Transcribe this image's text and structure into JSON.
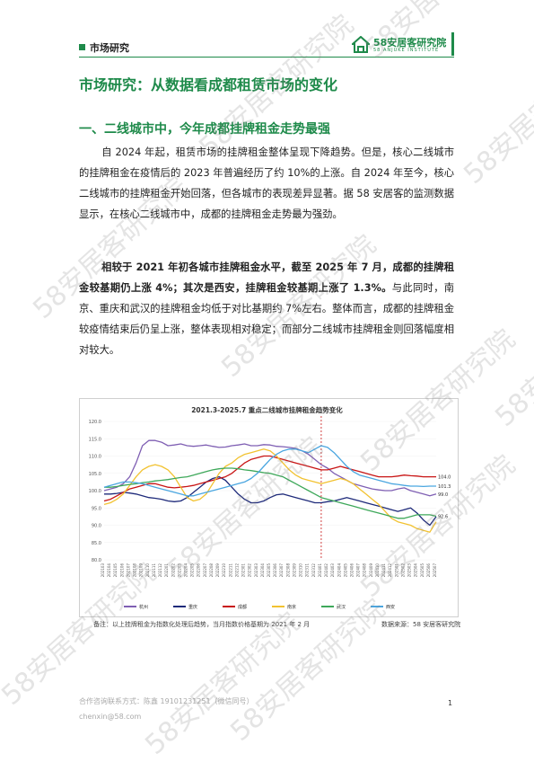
{
  "header": {
    "section_tag": "市场研究",
    "logo_cn": "58安居客研究院",
    "logo_en": "58 ANJUKE INSTITUTE",
    "brand_color": "#1e8a4a"
  },
  "title": "市场研究：从数据看成都租赁市场的变化",
  "section_heading": "一、二线城市中，今年成都挂牌租金走势最强",
  "paragraph1": "自 2024 年起，租赁市场的挂牌租金整体呈现下降趋势。但是，核心二线城市的挂牌租金在疫情后的 2023 年普遍经历了约 10%的上涨。自 2024 年至今，核心二线城市的挂牌租金开始回落，但各城市的表现差异显著。据 58 安居客的监测数据显示，在核心二线城市中，成都的挂牌租金走势最为强劲。",
  "paragraph2_bold": "相较于 2021 年初各城市挂牌租金水平，截至 2025 年 7 月，成都的挂牌租金较基期仍上涨 4%；其次是西安，挂牌租金较基期上涨了 1.3%。",
  "paragraph2_rest": "与此同时，南京、重庆和武汉的挂牌租金均低于对比基期约 7%左右。整体而言，成都的挂牌租金较疫情结束后仍呈上涨，整体表现相对稳定；而部分二线城市挂牌租金则回落幅度相对较大。",
  "chart_title": "2021.3-2025.7 重点二线城市挂牌租金趋势变化",
  "chart_note": "备注：以上挂牌租金为指数化处理后趋势，当月指数价格基期为 2021 年 2 月",
  "chart_source": "数据来源：58 安居客研究院",
  "footer": {
    "contact1": "合作咨询联系方式：陈鑫 19101231251（微信同号）",
    "contact2": "chenxin@58.com",
    "page": "1"
  },
  "watermark": "58安居客研究院",
  "chart_data": {
    "type": "line",
    "title": "2021.3-2025.7 重点二线城市挂牌租金趋势变化",
    "ylim": [
      80,
      120
    ],
    "yticks": [
      "120.0",
      "115.0",
      "110.0",
      "105.0",
      "100.0",
      "95.0",
      "90.0",
      "85.0",
      "80.0"
    ],
    "x": [
      "2021/03",
      "2021/04",
      "2021/05",
      "2021/06",
      "2021/07",
      "2021/08",
      "2021/09",
      "2021/10",
      "2021/11",
      "2021/12",
      "2022/01",
      "2022/02",
      "2022/03",
      "2022/04",
      "2022/05",
      "2022/06",
      "2022/07",
      "2022/08",
      "2022/09",
      "2022/10",
      "2022/11",
      "2022/12",
      "2023/01",
      "2023/02",
      "2023/03",
      "2023/04",
      "2023/05",
      "2023/06",
      "2023/07",
      "2023/08",
      "2023/09",
      "2023/10",
      "2023/11",
      "2023/12",
      "2024/01",
      "2024/02",
      "2024/03",
      "2024/04",
      "2024/05",
      "2024/06",
      "2024/07",
      "2024/08",
      "2024/09",
      "2024/10",
      "2024/11",
      "2024/12",
      "2025/01",
      "2025/02",
      "2025/03",
      "2025/04",
      "2025/05",
      "2025/06",
      "2025/07"
    ],
    "series": [
      {
        "name": "杭州",
        "color": "#7f5fb3",
        "values": [
          100,
          100.5,
          101,
          102,
          104,
          108,
          113,
          114.5,
          114.5,
          114,
          113,
          113.2,
          113.5,
          113,
          112.8,
          113,
          113.2,
          112.8,
          112.5,
          112.6,
          113,
          113.2,
          113.5,
          113,
          113,
          113.3,
          113.2,
          112.8,
          112.7,
          112.5,
          112.2,
          111.5,
          110.5,
          109,
          107.5,
          106.5,
          105,
          104,
          103,
          102,
          101.5,
          101,
          100.5,
          100.2,
          100,
          100,
          100.5,
          100.8,
          100,
          99.5,
          99,
          98.5,
          99.0
        ]
      },
      {
        "name": "重庆",
        "color": "#1e2a7a",
        "values": [
          99,
          99,
          99.2,
          99.5,
          99.3,
          99,
          98.5,
          98,
          97.8,
          97.5,
          97,
          96.8,
          97,
          98,
          99.5,
          101,
          102.5,
          103.5,
          104,
          103,
          101,
          99,
          97.5,
          96.5,
          96.5,
          97,
          98,
          98.8,
          99,
          98.5,
          98,
          97.5,
          97,
          96.5,
          96.5,
          96.8,
          97,
          97.5,
          98,
          97.5,
          97,
          96.5,
          96,
          95.5,
          95,
          94.5,
          94,
          94.5,
          95,
          93.5,
          91.5,
          90,
          92.5
        ]
      },
      {
        "name": "成都",
        "color": "#c81414",
        "values": [
          97,
          97.5,
          98.5,
          99.5,
          100.5,
          101,
          101.5,
          102,
          102,
          101.5,
          101,
          100.8,
          101,
          101.2,
          101.5,
          102,
          102.5,
          103,
          103.5,
          104,
          105,
          106.5,
          108,
          109,
          109.5,
          110,
          110,
          109.5,
          109,
          108.5,
          108,
          107.5,
          107,
          106.5,
          106,
          106,
          106.5,
          107,
          106.5,
          106,
          105.5,
          105,
          104.5,
          104,
          104,
          104,
          104.2,
          104.5,
          104.3,
          104.2,
          104,
          104,
          104.0
        ]
      },
      {
        "name": "南京",
        "color": "#f2c230",
        "values": [
          96,
          96.5,
          97.5,
          99,
          101.5,
          104,
          106,
          107,
          107.5,
          107,
          106,
          104,
          101,
          98,
          97,
          97.5,
          99,
          102,
          105,
          107,
          108,
          109.5,
          110.5,
          111,
          111.5,
          112,
          111.5,
          110,
          108,
          106,
          104.5,
          103.5,
          103,
          102.5,
          102,
          102.5,
          103,
          103.5,
          103,
          102,
          100.5,
          99,
          97.5,
          96,
          94,
          92,
          91,
          90.5,
          90,
          89,
          88.5,
          88,
          91
        ]
      },
      {
        "name": "武汉",
        "color": "#3ea85a",
        "values": [
          101,
          101,
          101.2,
          101.5,
          101.8,
          102,
          102.3,
          102.5,
          102.8,
          103,
          103.2,
          103.5,
          103.8,
          104,
          104.5,
          105,
          105.5,
          106,
          106.3,
          106.5,
          106.5,
          106.3,
          106,
          105.8,
          105.5,
          105.2,
          105,
          104.5,
          104,
          103,
          102,
          101,
          100,
          99,
          98,
          97.5,
          97,
          96.5,
          96,
          95.5,
          95,
          94.5,
          94,
          93.5,
          93,
          92.5,
          92,
          92,
          92.5,
          93,
          93,
          93,
          92.6
        ]
      },
      {
        "name": "西安",
        "color": "#4aa6e0",
        "values": [
          101,
          101.5,
          102,
          102.5,
          102.5,
          102.3,
          102,
          101.5,
          101,
          100.5,
          100,
          99.5,
          99,
          98.5,
          98.5,
          99,
          99.5,
          100,
          100.5,
          101,
          101.5,
          102,
          102.5,
          103.5,
          105,
          107,
          109,
          110.5,
          111.5,
          112,
          112,
          111.5,
          111,
          112,
          113,
          112.5,
          111,
          109,
          107,
          105.5,
          104.5,
          104,
          103.5,
          103,
          102.5,
          102,
          101.8,
          101.5,
          101.3,
          101.3,
          101.2,
          101.3,
          101.3
        ]
      }
    ],
    "end_labels": [
      "104.0",
      "101.3",
      "99.0",
      "92.6"
    ],
    "reference_line_at": "2024/01"
  }
}
